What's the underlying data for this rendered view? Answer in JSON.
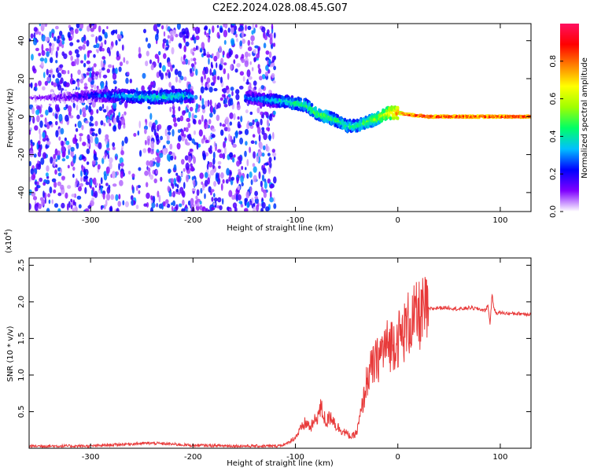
{
  "title": "C2E2.2024.028.08.45.G07",
  "chart_data": [
    {
      "type": "heatmap",
      "xlabel": "Height of straight line (km)",
      "ylabel": "Frequency (Hz)",
      "xlim": [
        -360,
        130
      ],
      "ylim": [
        -50,
        49
      ],
      "xticks": [
        -300,
        -200,
        -100,
        0,
        100
      ],
      "yticks": [
        -40,
        -20,
        0,
        20,
        40
      ],
      "colorbar": {
        "label": "Normalized spectral amplitude",
        "ticks": [
          "0.0",
          "0.2",
          "0.4",
          "0.6",
          "0.8"
        ],
        "tick_values": [
          0.0,
          0.2,
          0.4,
          0.6,
          0.8
        ],
        "range": [
          0,
          1
        ],
        "colors": [
          "#ffffff",
          "#7f00ff",
          "#0000ff",
          "#00c0ff",
          "#00ff66",
          "#a0ff00",
          "#ffff00",
          "#ff8000",
          "#ff0000",
          "#ff1060"
        ]
      },
      "signal_track": {
        "x": [
          -360,
          -330,
          -300,
          -270,
          -240,
          -210,
          -190,
          -150,
          -130,
          -110,
          -100,
          -90,
          -80,
          -70,
          -60,
          -50,
          -40,
          -30,
          -20,
          -10,
          0,
          10,
          30,
          50,
          80,
          100,
          130
        ],
        "y": [
          10,
          10,
          11,
          11,
          10,
          11,
          10,
          10,
          9,
          8,
          7,
          6,
          2,
          0,
          -2,
          -5,
          -5,
          -3,
          -1,
          2,
          2,
          1,
          0,
          0,
          0,
          0,
          0
        ],
        "amplitude": [
          0.15,
          0.2,
          0.3,
          0.4,
          0.45,
          0.45,
          0.3,
          0.35,
          0.4,
          0.45,
          0.5,
          0.5,
          0.55,
          0.55,
          0.5,
          0.5,
          0.5,
          0.55,
          0.6,
          0.7,
          0.85,
          0.92,
          0.95,
          0.95,
          0.95,
          0.95,
          0.95
        ]
      },
      "noise_region_x": [
        -360,
        -120
      ]
    },
    {
      "type": "line",
      "xlabel": "Height of straight line (km)",
      "ylabel": "SNR (10 * v/v)",
      "scale_label": "(x10",
      "scale_exp": "4",
      "scale_close": ")",
      "xlim": [
        -360,
        130
      ],
      "ylim": [
        0,
        26000
      ],
      "xticks": [
        -300,
        -200,
        -100,
        0,
        100
      ],
      "yticks": [
        5000,
        10000,
        15000,
        20000,
        25000
      ],
      "ytick_labels": [
        "0.5",
        "1.0",
        "1.5",
        "2.0",
        "2.5"
      ],
      "color": "#e83a3a",
      "series": [
        {
          "x": [
            -360,
            -300,
            -260,
            -240,
            -200,
            -150,
            -120,
            -110,
            -100,
            -95,
            -90,
            -85,
            -80,
            -75,
            -70,
            -65,
            -60,
            -55,
            -50,
            -45,
            -40,
            -35,
            -30,
            -25,
            -20,
            -15,
            -10,
            -5,
            0,
            5,
            10,
            15,
            20,
            25,
            30,
            40,
            50,
            60,
            70,
            80,
            85,
            88,
            90,
            92,
            94,
            96,
            100,
            110,
            120,
            130
          ],
          "y": [
            300,
            300,
            600,
            700,
            400,
            300,
            300,
            500,
            1500,
            2500,
            3500,
            2800,
            4000,
            5500,
            3500,
            4500,
            3000,
            2500,
            2000,
            1500,
            2200,
            5500,
            9500,
            11000,
            12000,
            13500,
            14000,
            14500,
            15000,
            15500,
            17000,
            17500,
            18000,
            18500,
            19000,
            19200,
            19200,
            19000,
            19200,
            19000,
            18800,
            19500,
            17000,
            21000,
            19000,
            18500,
            18500,
            18400,
            18400,
            18300
          ]
        }
      ]
    }
  ]
}
